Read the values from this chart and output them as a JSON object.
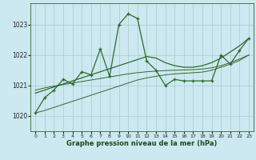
{
  "title": "Graphe pression niveau de la mer (hPa)",
  "bg_color": "#cce8f0",
  "grid_color": "#aacccc",
  "line_color": "#2d6a2d",
  "xlim": [
    -0.5,
    23.5
  ],
  "ylim": [
    1019.5,
    1023.7
  ],
  "yticks": [
    1020,
    1021,
    1022,
    1023
  ],
  "xticks": [
    0,
    1,
    2,
    3,
    4,
    5,
    6,
    7,
    8,
    9,
    10,
    11,
    12,
    13,
    14,
    15,
    16,
    17,
    18,
    19,
    20,
    21,
    22,
    23
  ],
  "hours": [
    0,
    1,
    2,
    3,
    4,
    5,
    6,
    7,
    8,
    9,
    10,
    11,
    12,
    13,
    14,
    15,
    16,
    17,
    18,
    19,
    20,
    21,
    22,
    23
  ],
  "main_vals": [
    1020.1,
    1020.6,
    1020.85,
    1021.2,
    1021.05,
    1021.45,
    1021.35,
    1022.2,
    1021.3,
    1023.0,
    1023.35,
    1023.2,
    1021.8,
    1021.5,
    1021.0,
    1021.2,
    1021.15,
    1021.15,
    1021.15,
    1021.15,
    1022.0,
    1021.7,
    1022.15,
    1022.55
  ],
  "smooth_vals": [
    1020.75,
    1020.85,
    1020.95,
    1021.05,
    1021.15,
    1021.25,
    1021.35,
    1021.45,
    1021.55,
    1021.65,
    1021.75,
    1021.85,
    1021.95,
    1021.9,
    1021.75,
    1021.65,
    1021.6,
    1021.6,
    1021.65,
    1021.75,
    1021.9,
    1022.1,
    1022.3,
    1022.55
  ],
  "trend1_vals": [
    1020.1,
    1020.18,
    1020.28,
    1020.38,
    1020.48,
    1020.58,
    1020.68,
    1020.78,
    1020.88,
    1020.98,
    1021.08,
    1021.18,
    1021.25,
    1021.3,
    1021.35,
    1021.38,
    1021.4,
    1021.42,
    1021.44,
    1021.5,
    1021.6,
    1021.7,
    1021.82,
    1022.0
  ],
  "trend2_vals": [
    1020.85,
    1020.92,
    1020.98,
    1021.03,
    1021.08,
    1021.13,
    1021.18,
    1021.23,
    1021.28,
    1021.33,
    1021.38,
    1021.42,
    1021.45,
    1021.47,
    1021.49,
    1021.5,
    1021.51,
    1021.52,
    1021.54,
    1021.58,
    1021.65,
    1021.75,
    1021.87,
    1022.0
  ]
}
